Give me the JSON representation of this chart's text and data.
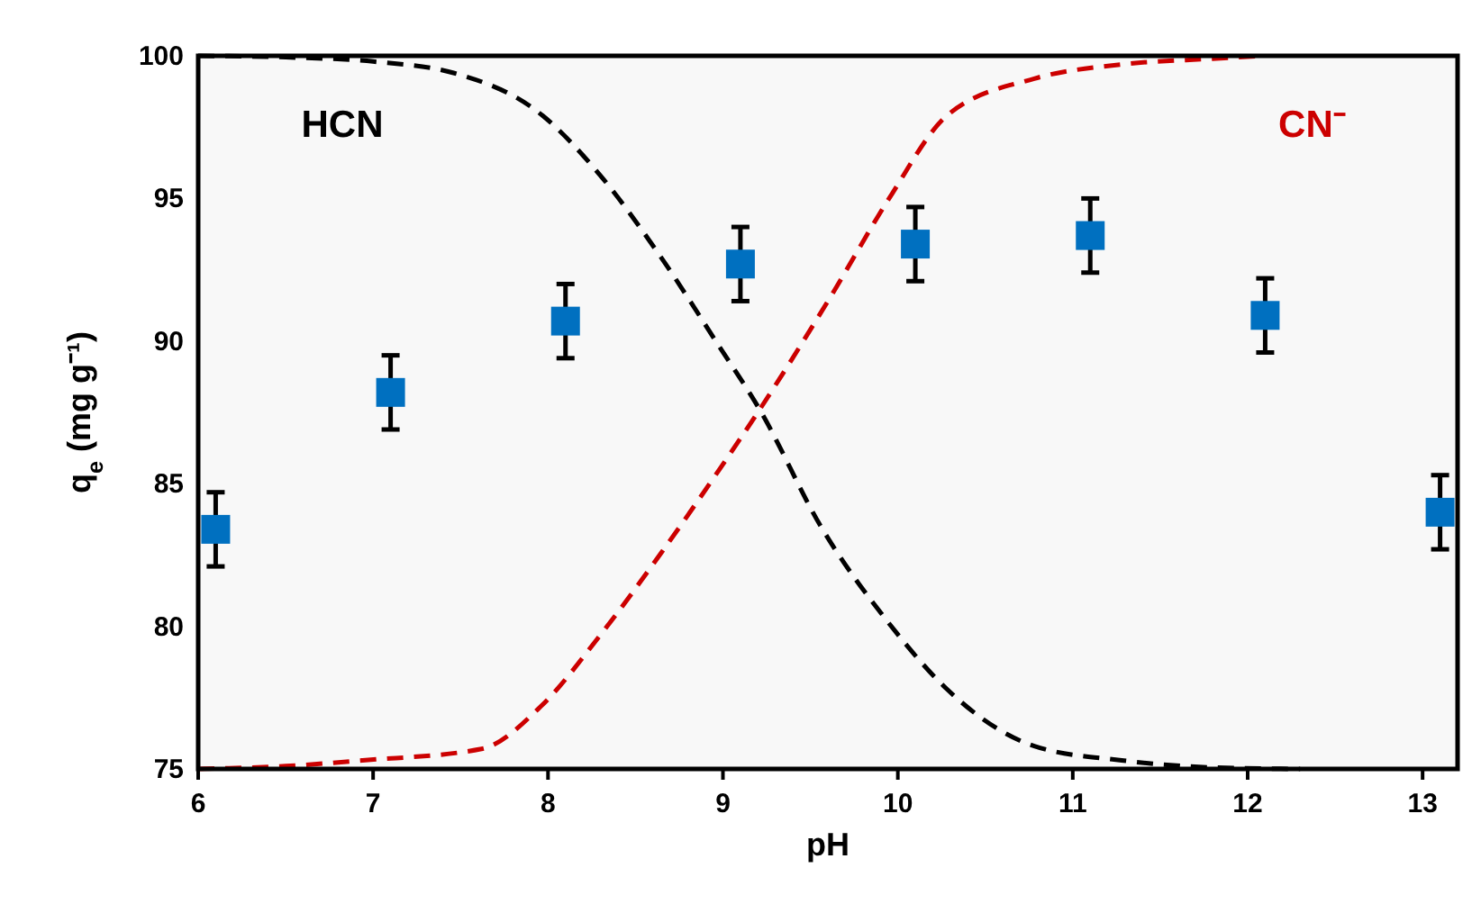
{
  "chart_data": {
    "type": "scatter",
    "xlabel": "pH",
    "ylabel": "q$_{e}$ (mg g⁻¹)",
    "xlim": [
      6,
      13.2
    ],
    "ylim": [
      75,
      100
    ],
    "xticks": [
      6,
      7,
      8,
      9,
      10,
      11,
      12,
      13
    ],
    "yticks": [
      75,
      80,
      85,
      90,
      95,
      100
    ],
    "grid": false,
    "series": [
      {
        "name": "HCN",
        "type": "line",
        "color": "#000000",
        "line_style": "dashed",
        "x": [
          6,
          6.5,
          7,
          7.46,
          7.97,
          8.3,
          8.65,
          8.98,
          9.21,
          9.56,
          9.95,
          10.28,
          10.78,
          11.28,
          11.8,
          12.3
        ],
        "values": [
          100,
          99.95,
          99.8,
          99.4,
          97.9,
          95.8,
          92.9,
          89.8,
          87.6,
          83.5,
          80.1,
          77.8,
          75.8,
          75.3,
          75.05,
          75
        ]
      },
      {
        "name": "CN⁻",
        "type": "line",
        "color": "#cc0000",
        "line_style": "dashed",
        "x": [
          6,
          6.5,
          6.94,
          7.62,
          7.96,
          8.3,
          8.65,
          8.98,
          9.21,
          9.62,
          9.95,
          10.28,
          10.78,
          11.28,
          11.8,
          12.1
        ],
        "values": [
          75,
          75.1,
          75.3,
          75.7,
          77.2,
          79.7,
          82.6,
          85.5,
          87.6,
          91.6,
          95,
          97.9,
          99.2,
          99.7,
          99.9,
          100
        ]
      },
      {
        "color": "#0070c0",
        "marker": "square",
        "x": [
          6.1,
          7.1,
          8.1,
          9.1,
          10.1,
          11.1,
          12.1,
          13.1
        ],
        "values": [
          83.4,
          88.2,
          90.7,
          92.7,
          93.4,
          93.7,
          90.9,
          84
        ],
        "errors": [
          1.3,
          1.3,
          1.3,
          1.3,
          1.3,
          1.3,
          1.3,
          1.3
        ]
      }
    ]
  }
}
